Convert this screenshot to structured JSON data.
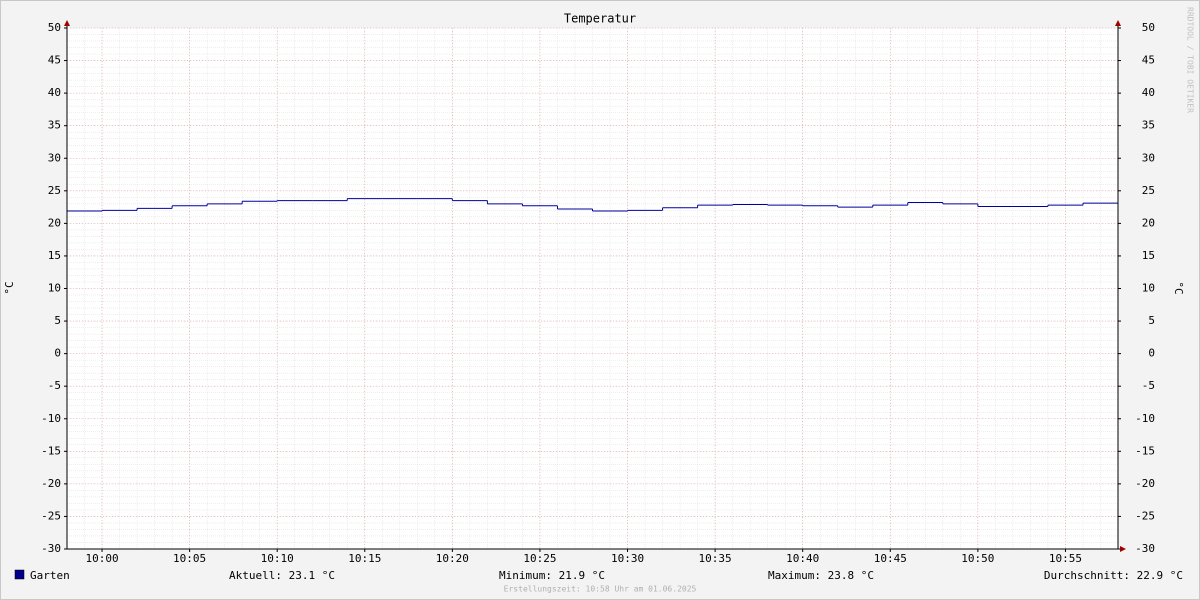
{
  "chart_data": {
    "type": "step",
    "title": "Temperatur",
    "ylabel": "°C",
    "watermark": "RRDTOOL / TOBI OETIKER",
    "x": [
      "09:58",
      "10:00",
      "10:02",
      "10:04",
      "10:06",
      "10:08",
      "10:10",
      "10:12",
      "10:14",
      "10:16",
      "10:18",
      "10:20",
      "10:22",
      "10:24",
      "10:26",
      "10:28",
      "10:30",
      "10:32",
      "10:34",
      "10:36",
      "10:38",
      "10:40",
      "10:42",
      "10:44",
      "10:46",
      "10:48",
      "10:50",
      "10:52",
      "10:54",
      "10:56"
    ],
    "series": [
      {
        "name": "Garten",
        "color": "#0000a0",
        "values": [
          21.9,
          22.0,
          22.3,
          22.7,
          23.0,
          23.4,
          23.5,
          23.5,
          23.8,
          23.8,
          23.8,
          23.5,
          23.0,
          22.7,
          22.2,
          21.9,
          22.0,
          22.4,
          22.8,
          22.9,
          22.8,
          22.7,
          22.5,
          22.8,
          23.2,
          23.0,
          22.6,
          22.6,
          22.8,
          23.1
        ]
      }
    ],
    "xlim": [
      "09:58",
      "10:58"
    ],
    "xticks": [
      "10:00",
      "10:05",
      "10:10",
      "10:15",
      "10:20",
      "10:25",
      "10:30",
      "10:35",
      "10:40",
      "10:45",
      "10:50",
      "10:55"
    ],
    "ylim": [
      -30,
      50
    ],
    "yticks": [
      -30,
      -25,
      -20,
      -15,
      -10,
      -5,
      0,
      5,
      10,
      15,
      20,
      25,
      30,
      35,
      40,
      45,
      50
    ],
    "grid": true,
    "minor_grid_step": {
      "x": 1,
      "y": 1
    },
    "legend_stats": [
      "Aktuell: 23.1 °C",
      "Minimum: 21.9 °C",
      "Maximum: 23.8 °C",
      "Durchschnitt: 22.9 °C"
    ],
    "footer": "Erstellungszeit: 10:58 Uhr am 01.06.2025"
  }
}
